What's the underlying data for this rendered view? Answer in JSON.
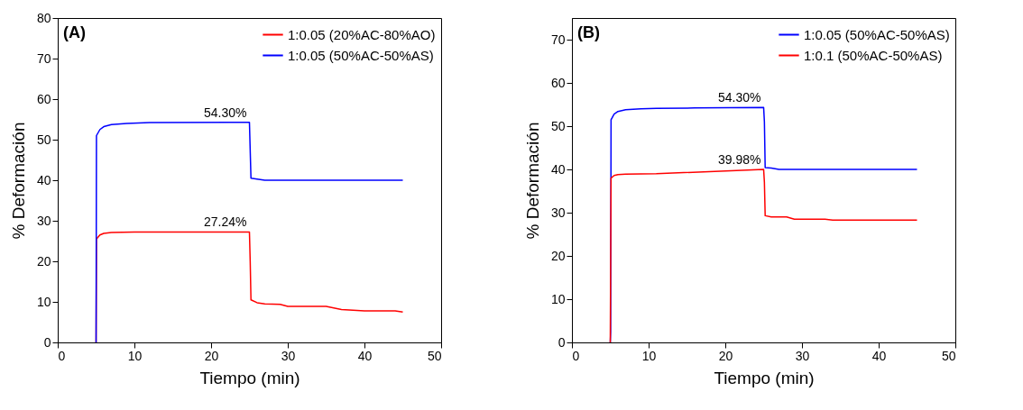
{
  "chart_data": [
    {
      "type": "line",
      "title": "(A)",
      "xlabel": "Tiempo (min)",
      "ylabel": "% Deformación",
      "xlim": [
        0,
        50
      ],
      "xticks": [
        0,
        10,
        20,
        30,
        40,
        50
      ],
      "ylim": [
        0,
        80
      ],
      "yticks": [
        0,
        10,
        20,
        30,
        40,
        50,
        60,
        70,
        80
      ],
      "grid": false,
      "legend": "top right",
      "series": [
        {
          "name": "1:0.05 (20%AC-80%AO)",
          "color": "#ff0000",
          "x": [
            5,
            5.05,
            5.5,
            6,
            7,
            10,
            25,
            25.1,
            25.2,
            26,
            27,
            29,
            30,
            35,
            37,
            40,
            44,
            45
          ],
          "values": [
            0,
            25.5,
            26.5,
            26.9,
            27.1,
            27.2,
            27.24,
            20,
            10.5,
            9.8,
            9.5,
            9.4,
            8.9,
            8.9,
            8.1,
            7.8,
            7.8,
            7.5
          ],
          "value_labels": [
            null,
            null,
            null,
            null,
            null,
            null,
            "27.24%",
            null,
            null,
            null,
            null,
            null,
            null,
            null,
            null,
            null,
            null,
            null
          ]
        },
        {
          "name": "1:0.05 (50%AC-50%AS)",
          "color": "#0000ff",
          "x": [
            5,
            5.05,
            5.5,
            6,
            7,
            9,
            12,
            25,
            25.2,
            26,
            27,
            45
          ],
          "values": [
            0,
            51,
            52.5,
            53.2,
            53.7,
            54,
            54.2,
            54.3,
            40.5,
            40.3,
            40,
            40
          ],
          "value_labels": [
            null,
            null,
            null,
            null,
            null,
            null,
            null,
            "54.30%",
            null,
            null,
            null,
            null
          ]
        }
      ]
    },
    {
      "type": "line",
      "title": "(B)",
      "xlabel": "Tiempo (min)",
      "ylabel": "% Deformación",
      "xlim": [
        0,
        50
      ],
      "xticks": [
        0,
        10,
        20,
        30,
        40,
        50
      ],
      "ylim": [
        0,
        75
      ],
      "yticks": [
        0,
        10,
        20,
        30,
        40,
        50,
        60,
        70
      ],
      "grid": false,
      "legend": "top right",
      "series": [
        {
          "name": "1:0.05 (50%AC-50%AS)",
          "color": "#0000ff",
          "x": [
            5,
            5.05,
            5.1,
            5.5,
            6,
            7,
            9,
            11,
            16,
            25,
            25.1,
            25.2,
            26,
            27,
            45
          ],
          "values": [
            0,
            2.5,
            51.5,
            52.8,
            53.4,
            53.8,
            54,
            54.1,
            54.2,
            54.3,
            51,
            40.4,
            40.3,
            40,
            40
          ],
          "value_labels": [
            null,
            null,
            null,
            null,
            null,
            null,
            null,
            null,
            null,
            "54.30%",
            null,
            null,
            null,
            null,
            null
          ]
        },
        {
          "name": "1:0.1 (50%AC-50%AS)",
          "color": "#ff0000",
          "x": [
            5,
            5.1,
            5.5,
            6,
            7,
            11,
            25,
            25.1,
            25.2,
            26,
            28,
            29,
            33,
            34,
            45
          ],
          "values": [
            0,
            38,
            38.6,
            38.8,
            38.9,
            39,
            39.98,
            37,
            29.3,
            29,
            29,
            28.5,
            28.5,
            28.3,
            28.3
          ],
          "value_labels": [
            null,
            null,
            null,
            null,
            null,
            null,
            "39.98%",
            null,
            null,
            null,
            null,
            null,
            null,
            null,
            null
          ]
        }
      ]
    }
  ]
}
